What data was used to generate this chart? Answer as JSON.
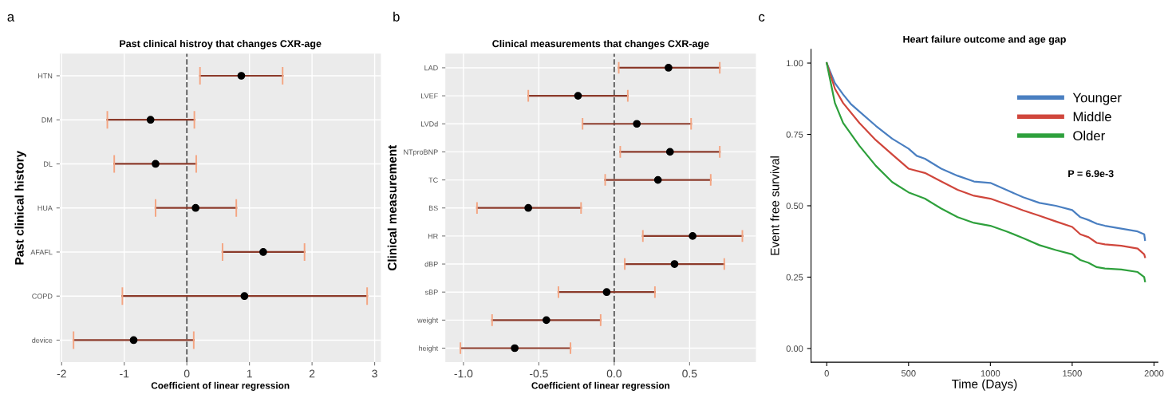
{
  "chart_data": [
    {
      "type": "scatter",
      "orientation": "horizontal",
      "title": "Past clinical histroy that changes CXR-age",
      "xlabel": "Coefficient of linear regression",
      "ylabel": "Past clinical history",
      "annotations": [
        "a"
      ],
      "categories": [
        "HTN",
        "DM",
        "DL",
        "HUA",
        "AFAFL",
        "COPD",
        "device"
      ],
      "series": [
        {
          "color": "#000000",
          "values": [
            0.87,
            -0.58,
            -0.5,
            0.14,
            1.22,
            0.92,
            -0.85
          ],
          "errors": [
            [
              0.21,
              1.53
            ],
            [
              -1.27,
              0.12
            ],
            [
              -1.16,
              0.15
            ],
            [
              -0.5,
              0.79
            ],
            [
              0.57,
              1.88
            ],
            [
              -1.03,
              2.88
            ],
            [
              -1.81,
              0.11
            ]
          ]
        }
      ],
      "xlim": [
        -2.03,
        3.1
      ],
      "xticks": [
        -2,
        -1,
        0,
        1,
        2,
        3
      ],
      "grid": true,
      "marker": "circle",
      "ref_lines": [
        {
          "axis": "x",
          "value": 0,
          "line_style": "dashed",
          "color": "#555555"
        }
      ]
    },
    {
      "type": "scatter",
      "orientation": "horizontal",
      "title": "Clinical measurements that changes CXR-age",
      "xlabel": "Coefficient of linear regression",
      "ylabel": "Clinical measurement",
      "annotations": [
        "b"
      ],
      "categories": [
        "LAD",
        "LVEF",
        "LVDd",
        "NTproBNP",
        "TC",
        "BS",
        "HR",
        "dBP",
        "sBP",
        "weight",
        "height"
      ],
      "series": [
        {
          "color": "#000000",
          "values": [
            0.36,
            -0.24,
            0.15,
            0.37,
            0.29,
            -0.57,
            0.52,
            0.4,
            -0.05,
            -0.45,
            -0.66
          ],
          "errors": [
            [
              0.03,
              0.7
            ],
            [
              -0.57,
              0.09
            ],
            [
              -0.21,
              0.51
            ],
            [
              0.04,
              0.7
            ],
            [
              -0.06,
              0.64
            ],
            [
              -0.91,
              -0.22
            ],
            [
              0.19,
              0.85
            ],
            [
              0.07,
              0.73
            ],
            [
              -0.37,
              0.27
            ],
            [
              -0.81,
              -0.09
            ],
            [
              -1.02,
              -0.29
            ]
          ]
        }
      ],
      "xlim": [
        -1.12,
        0.94
      ],
      "xticks": [
        {
          "value": -1,
          "label": "-1.0"
        },
        {
          "value": -0.5,
          "label": "-0.5"
        },
        {
          "value": 0,
          "label": "0.0"
        },
        {
          "value": 0.5,
          "label": "0.5"
        }
      ],
      "grid": true,
      "marker": "circle",
      "ref_lines": [
        {
          "axis": "x",
          "value": 0,
          "line_style": "dashed",
          "color": "#555555"
        }
      ]
    },
    {
      "type": "line",
      "title": "Heart failure outcome and age gap",
      "xlabel": "Time (Days)",
      "ylabel": "Event free survival",
      "annotations": [
        "c",
        "P = 6.9e-3"
      ],
      "series": [
        {
          "name": "Younger",
          "color": "#4a7fc1",
          "x": [
            0,
            50,
            100,
            150,
            200,
            300,
            400,
            500,
            550,
            600,
            700,
            800,
            900,
            1000,
            1100,
            1200,
            1300,
            1400,
            1500,
            1550,
            1600,
            1650,
            1700,
            1800,
            1900,
            1940,
            1945
          ],
          "values": [
            1.0,
            0.93,
            0.89,
            0.855,
            0.83,
            0.78,
            0.735,
            0.7,
            0.675,
            0.665,
            0.63,
            0.605,
            0.585,
            0.58,
            0.555,
            0.53,
            0.51,
            0.5,
            0.485,
            0.46,
            0.45,
            0.437,
            0.43,
            0.42,
            0.41,
            0.4,
            0.38
          ]
        },
        {
          "name": "Middle",
          "color": "#d0463c",
          "x": [
            0,
            50,
            100,
            200,
            300,
            400,
            500,
            600,
            700,
            800,
            900,
            1000,
            1100,
            1200,
            1300,
            1400,
            1500,
            1550,
            1600,
            1650,
            1700,
            1800,
            1900,
            1940,
            1945
          ],
          "values": [
            1.0,
            0.91,
            0.86,
            0.79,
            0.73,
            0.68,
            0.63,
            0.615,
            0.585,
            0.556,
            0.535,
            0.525,
            0.505,
            0.484,
            0.465,
            0.445,
            0.426,
            0.4,
            0.39,
            0.37,
            0.365,
            0.36,
            0.35,
            0.33,
            0.32
          ]
        },
        {
          "name": "Older",
          "color": "#2ea03c",
          "x": [
            0,
            50,
            100,
            200,
            300,
            400,
            500,
            600,
            700,
            800,
            900,
            1000,
            1100,
            1200,
            1300,
            1400,
            1500,
            1550,
            1600,
            1650,
            1700,
            1800,
            1900,
            1940,
            1945
          ],
          "values": [
            1.0,
            0.86,
            0.79,
            0.71,
            0.64,
            0.583,
            0.547,
            0.525,
            0.49,
            0.46,
            0.44,
            0.43,
            0.41,
            0.387,
            0.362,
            0.345,
            0.33,
            0.31,
            0.3,
            0.285,
            0.28,
            0.277,
            0.268,
            0.25,
            0.235
          ]
        }
      ],
      "xlim": [
        -96,
        2024
      ],
      "ylim": [
        -0.048,
        1.048
      ],
      "xticks": [
        0,
        500,
        1000,
        1500,
        2000
      ],
      "yticks": [
        {
          "value": 0,
          "label": "0.00"
        },
        {
          "value": 0.25,
          "label": "0.25"
        },
        {
          "value": 0.5,
          "label": "0.50"
        },
        {
          "value": 0.75,
          "label": "0.75"
        },
        {
          "value": 1,
          "label": "1.00"
        }
      ],
      "grid": false,
      "legend": "top right"
    }
  ]
}
